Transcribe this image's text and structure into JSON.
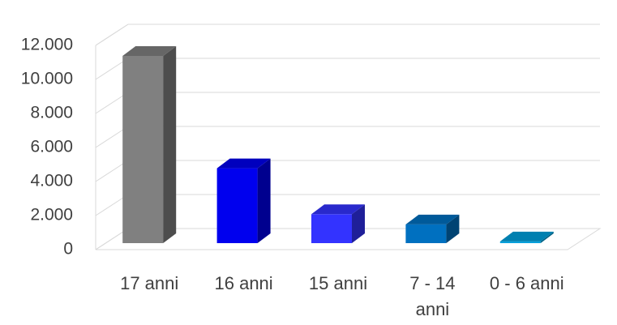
{
  "chart_data": {
    "type": "bar3d",
    "categories": [
      "17 anni",
      "16 anni",
      "15 anni",
      "7 - 14 anni",
      "0 - 6 anni"
    ],
    "series": [
      {
        "values": [
          11000,
          4400,
          1700,
          1100,
          100
        ],
        "colors": [
          "#808080",
          "#0000ee",
          "#3333ff",
          "#0070c0",
          "#00a0dc"
        ]
      }
    ],
    "ylim": [
      0,
      12000
    ],
    "yticks": [
      0,
      {
        "value": 2000,
        "label": "2.000"
      },
      {
        "value": 4000,
        "label": "4.000"
      },
      {
        "value": 6000,
        "label": "6.000"
      },
      {
        "value": 8000,
        "label": "8.000"
      },
      {
        "value": 10000,
        "label": "10.000"
      },
      {
        "value": 12000,
        "label": "12.000"
      }
    ],
    "grid": true
  }
}
